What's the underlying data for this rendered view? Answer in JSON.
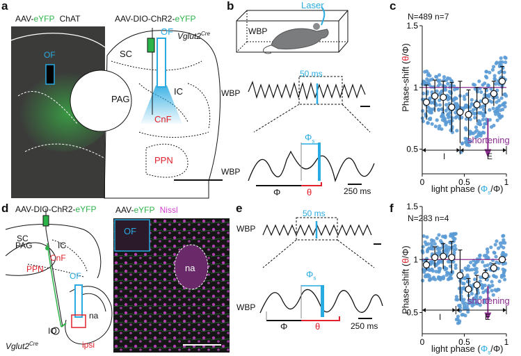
{
  "colors": {
    "green": "#2cb34a",
    "blue": "#29abe2",
    "red": "#e0202a",
    "purple": "#8b2c8f",
    "point": "#5b9bd5",
    "magenta": "#d43fd4",
    "dark": "#111111"
  },
  "panels": {
    "a": "a",
    "b": "b",
    "c": "c",
    "d": "d",
    "e": "e",
    "f": "f"
  },
  "a": {
    "left_label_prefix": "AAV-",
    "left_label_green": "eYFP",
    "left_label_chat": "ChAT",
    "of": "OF",
    "right_label_prefix": "AAV-DIO-ChR2-",
    "right_label_green": "eYFP",
    "cre": "Vglut2",
    "cre_sup": "Cre",
    "sc": "SC",
    "pag": "PAG",
    "ic": "IC",
    "cnf": "CnF",
    "ppn": "PPN"
  },
  "b": {
    "laser": "Laser",
    "wbp_box": "WBP",
    "ms50": "50 ms",
    "wbp1": "WBP",
    "wbp2": "WBP",
    "phi": "Φ",
    "theta": "θ",
    "phi_s": "Φ",
    "phi_s_sub": "s",
    "ms250": "250 ms"
  },
  "e": {
    "ms50": "50 ms",
    "wbp1": "WBP",
    "wbp2": "WBP",
    "phi": "Φ",
    "theta": "θ",
    "phi_s": "Φ",
    "phi_s_sub": "s",
    "ms250": "250 ms"
  },
  "d": {
    "title_prefix": "AAV-DIO-ChR2-",
    "title_green": "eYFP",
    "sc": "SC",
    "pag": "PAG",
    "ic": "IC",
    "cnf": "CnF",
    "ppn": "PPN",
    "of": "OF",
    "na": "na",
    "io": "IO",
    "cre": "Vglut2",
    "cre_sup": "Cre",
    "ipsi": "ipsi",
    "micro_prefix": "AAV-",
    "micro_green": "eYFP",
    "micro_nissl": "Nissl",
    "micro_of": "OF",
    "micro_na": "na"
  },
  "c": {
    "stats": "N=489 n=7",
    "ylabel_prefix": "Phase-shift (",
    "ylabel_theta": "θ",
    "ylabel_suffix": "/Φ)",
    "xlabel_prefix": "light phase (",
    "xlabel_phi": "Φ",
    "xlabel_sub": "s",
    "xlabel_suffix": "/Φ)",
    "shortening": "shortening",
    "region_I": "I",
    "region_E": "E"
  },
  "f": {
    "stats": "N=283 n=4",
    "ylabel_prefix": "Phase-shift (",
    "ylabel_theta": "θ",
    "ylabel_suffix": "/Φ)",
    "xlabel_prefix": "light phase (",
    "xlabel_phi": "Φ",
    "xlabel_sub": "s",
    "xlabel_suffix": "/Φ)",
    "shortening": "shortening",
    "region_I": "I",
    "region_E": "E"
  },
  "chart_data": [
    {
      "type": "scatter",
      "title": "N=489 n=7",
      "xlabel": "light phase (Φs/Φ)",
      "ylabel": "Phase-shift (θ/Φ)",
      "xlim": [
        0,
        1
      ],
      "ylim": [
        0.3,
        1.5
      ],
      "xticks": [
        0,
        0.5,
        1
      ],
      "yticks": [
        0.5,
        1,
        1.5
      ],
      "reference_line_y": 1,
      "boundary_x": 0.45,
      "means": {
        "x": [
          0.05,
          0.15,
          0.25,
          0.35,
          0.45,
          0.55,
          0.65,
          0.75,
          0.85,
          0.95
        ],
        "y": [
          0.88,
          0.93,
          0.92,
          0.84,
          0.8,
          0.78,
          0.86,
          0.89,
          0.95,
          1.05
        ],
        "sd": [
          0.14,
          0.13,
          0.13,
          0.2,
          0.25,
          0.2,
          0.14,
          0.1,
          0.1,
          0.12
        ]
      }
    },
    {
      "type": "scatter",
      "title": "N=283 n=4",
      "xlabel": "light phase (Φs/Φ)",
      "ylabel": "Phase-shift (θ/Φ)",
      "xlim": [
        0,
        1
      ],
      "ylim": [
        0.3,
        1.5
      ],
      "xticks": [
        0,
        0.5,
        1
      ],
      "yticks": [
        0.5,
        1,
        1.5
      ],
      "reference_line_y": 1,
      "boundary_x": 0.4,
      "means": {
        "x": [
          0.05,
          0.15,
          0.25,
          0.35,
          0.45,
          0.55,
          0.65,
          0.75,
          0.85,
          0.95
        ],
        "y": [
          0.95,
          1.02,
          1.03,
          1.02,
          0.85,
          0.72,
          0.76,
          0.85,
          0.92,
          1.0
        ],
        "sd": [
          0.05,
          0.1,
          0.12,
          0.15,
          0.24,
          0.1,
          0.09,
          0.05,
          0.04,
          0.02
        ]
      }
    }
  ]
}
